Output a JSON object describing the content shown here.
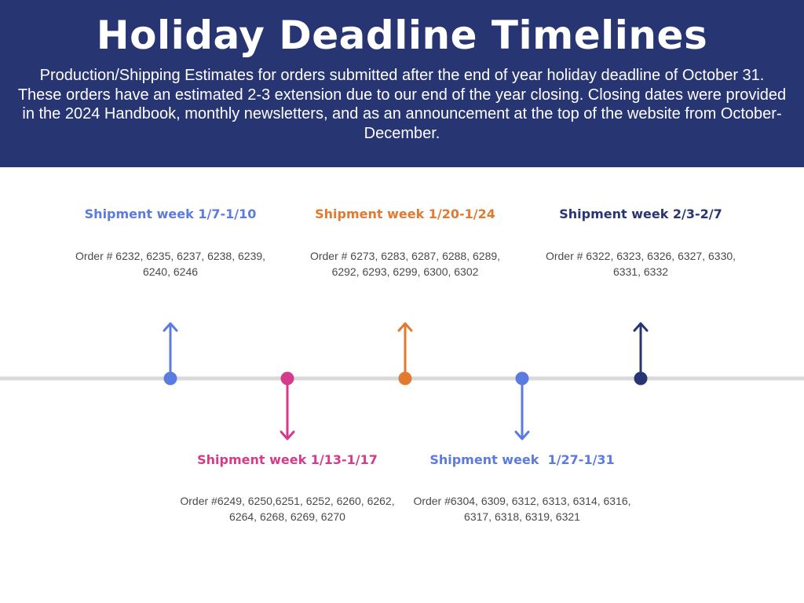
{
  "header": {
    "title": "Holiday Deadline Timelines",
    "subtitle": "Production/Shipping Estimates for orders submitted after the end of year holiday deadline of October 31. These orders have an estimated 2-3 extension due to our end of the year closing. Closing dates were provided in the 2024 Handbook, monthly newsletters, and as an announcement at the top of the website from October-December."
  },
  "colors": {
    "header_bg": "#283573",
    "axis": "#d9d9d9",
    "blue": "#5b7be0",
    "pink": "#d43b8a",
    "orange": "#e07a30",
    "navy": "#283573"
  },
  "timeline": {
    "milestones": [
      {
        "title": "Shipment week 1/7-1/10",
        "orders": "Order # 6232, 6235, 6237, 6238, 6239, 6240, 6246",
        "position": "above",
        "color": "#5b7be0"
      },
      {
        "title": "Shipment week 1/13-1/17",
        "orders": "Order #6249, 6250,6251, 6252, 6260, 6262, 6264, 6268, 6269, 6270",
        "position": "below",
        "color": "#d43b8a"
      },
      {
        "title": "Shipment week 1/20-1/24",
        "orders": "Order # 6273, 6283, 6287, 6288, 6289, 6292, 6293, 6299, 6300, 6302",
        "position": "above",
        "color": "#e07a30"
      },
      {
        "title": "Shipment week  1/27-1/31",
        "orders": "Order #6304, 6309, 6312, 6313, 6314, 6316, 6317, 6318, 6319, 6321",
        "position": "below",
        "color": "#5b7be0"
      },
      {
        "title": "Shipment week 2/3-2/7",
        "orders": "Order # 6322, 6323, 6326, 6327, 6330, 6331, 6332",
        "position": "above",
        "color": "#283573"
      }
    ]
  }
}
